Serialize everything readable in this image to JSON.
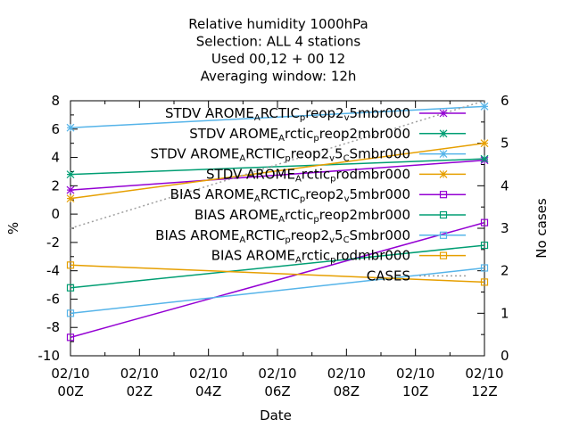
{
  "chart_data": {
    "type": "line",
    "title_lines": [
      "Relative humidity 1000hPa",
      "Selection: ALL      4 stations",
      "Used  00,12  + 00 12",
      "Averaging window: 12h"
    ],
    "xlabel": "Date",
    "ylabel": "%",
    "y2label": "No cases",
    "x": [
      0,
      12
    ],
    "x_ticks": [
      {
        "value": 0,
        "line1": "02/10",
        "line2": "00Z"
      },
      {
        "value": 2,
        "line1": "02/10",
        "line2": "02Z"
      },
      {
        "value": 4,
        "line1": "02/10",
        "line2": "04Z"
      },
      {
        "value": 6,
        "line1": "02/10",
        "line2": "06Z"
      },
      {
        "value": 8,
        "line1": "02/10",
        "line2": "08Z"
      },
      {
        "value": 10,
        "line1": "02/10",
        "line2": "10Z"
      },
      {
        "value": 12,
        "line1": "02/10",
        "line2": "12Z"
      }
    ],
    "xlim": [
      0,
      12
    ],
    "ylim": [
      -10,
      8
    ],
    "y_ticks": [
      -10,
      -8,
      -6,
      -4,
      -2,
      0,
      2,
      4,
      6,
      8
    ],
    "y2lim": [
      0,
      6
    ],
    "y2_ticks": [
      0,
      1,
      2,
      3,
      4,
      5,
      6
    ],
    "grid": false,
    "legend_position": "top-right",
    "series": [
      {
        "legend": [
          [
            "STDV AROME"
          ],
          [
            "A",
            "sub"
          ],
          [
            "RCTIC"
          ],
          [
            "p",
            "sub"
          ],
          [
            "reop2"
          ],
          [
            "v",
            "sub"
          ],
          [
            "5mbr000"
          ]
        ],
        "color": "#9400d3",
        "marker": "star",
        "axis": "y",
        "values": [
          1.7,
          3.8
        ]
      },
      {
        "legend": [
          [
            "STDV AROME"
          ],
          [
            "A",
            "sub"
          ],
          [
            "rctic"
          ],
          [
            "p",
            "sub"
          ],
          [
            "reop2mbr000"
          ]
        ],
        "color": "#009e73",
        "marker": "star",
        "axis": "y",
        "values": [
          2.8,
          3.9
        ]
      },
      {
        "legend": [
          [
            "STDV AROME"
          ],
          [
            "A",
            "sub"
          ],
          [
            "RCTIC"
          ],
          [
            "p",
            "sub"
          ],
          [
            "reop2"
          ],
          [
            "v",
            "sub"
          ],
          [
            "5"
          ],
          [
            "C",
            "sub"
          ],
          [
            "Smbr000"
          ]
        ],
        "color": "#56b4e9",
        "marker": "star",
        "axis": "y",
        "values": [
          6.1,
          7.6
        ]
      },
      {
        "legend": [
          [
            "STDV AROME"
          ],
          [
            "A",
            "sub"
          ],
          [
            "rctic"
          ],
          [
            "p",
            "sub"
          ],
          [
            "rodmbr000"
          ]
        ],
        "color": "#e69f00",
        "marker": "star",
        "axis": "y",
        "values": [
          1.1,
          5.0
        ]
      },
      {
        "legend": [
          [
            "BIAS AROME"
          ],
          [
            "A",
            "sub"
          ],
          [
            "RCTIC"
          ],
          [
            "p",
            "sub"
          ],
          [
            "reop2"
          ],
          [
            "v",
            "sub"
          ],
          [
            "5mbr000"
          ]
        ],
        "color": "#9400d3",
        "marker": "square",
        "axis": "y",
        "values": [
          -8.7,
          -0.6
        ]
      },
      {
        "legend": [
          [
            "BIAS AROME"
          ],
          [
            "A",
            "sub"
          ],
          [
            "rctic"
          ],
          [
            "p",
            "sub"
          ],
          [
            "reop2mbr000"
          ]
        ],
        "color": "#009e73",
        "marker": "square",
        "axis": "y",
        "values": [
          -5.2,
          -2.2
        ]
      },
      {
        "legend": [
          [
            "BIAS AROME"
          ],
          [
            "A",
            "sub"
          ],
          [
            "RCTIC"
          ],
          [
            "p",
            "sub"
          ],
          [
            "reop2"
          ],
          [
            "v",
            "sub"
          ],
          [
            "5"
          ],
          [
            "C",
            "sub"
          ],
          [
            "Smbr000"
          ]
        ],
        "color": "#56b4e9",
        "marker": "square",
        "axis": "y",
        "values": [
          -7.0,
          -3.8
        ]
      },
      {
        "legend": [
          [
            "BIAS AROME"
          ],
          [
            "A",
            "sub"
          ],
          [
            "rctic"
          ],
          [
            "p",
            "sub"
          ],
          [
            "rodmbr000"
          ]
        ],
        "color": "#e69f00",
        "marker": "square",
        "axis": "y",
        "values": [
          -3.6,
          -4.8
        ]
      },
      {
        "legend": [
          [
            "CASES"
          ]
        ],
        "color": "#a0a0a0",
        "marker": "none",
        "dashed": true,
        "axis": "y2",
        "values": [
          3.0,
          6.0
        ]
      }
    ]
  }
}
